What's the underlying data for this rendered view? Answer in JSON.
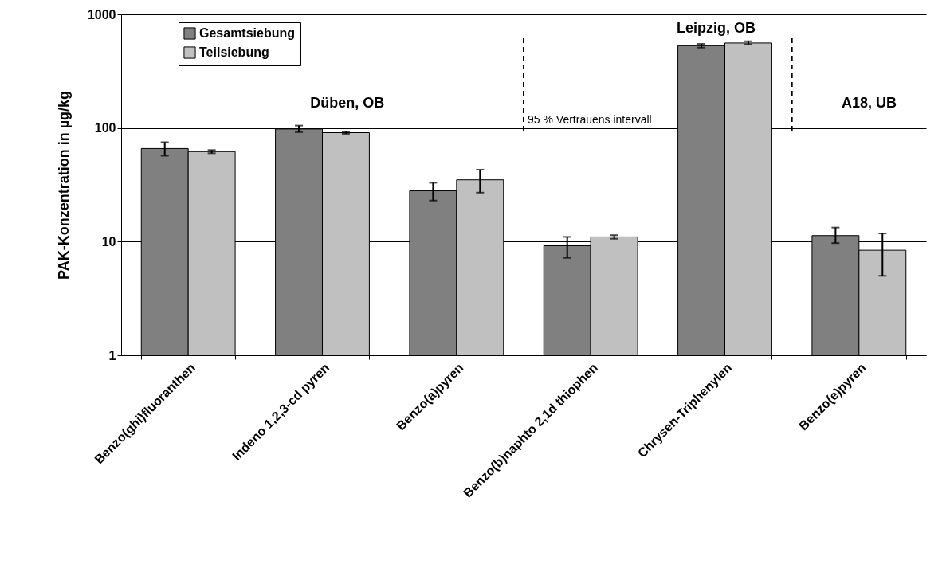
{
  "chart_data": {
    "type": "bar",
    "ylabel": "PAK-Konzentration in µg/kg",
    "categories": [
      "Benzo(ghi)fluoranthen",
      "Indeno 1,2,3-cd pyren",
      "Benzo(a)pyren",
      "Benzo(b)naphto 2,1d thiophen",
      "Chrysen-Triphenylen",
      "Benzo(e)pyren"
    ],
    "series": [
      {
        "name": "Gesamtsiebung",
        "color": "#808080",
        "values": [
          66,
          98,
          28,
          9.2,
          530,
          11.3
        ],
        "errors": [
          [
            57,
            75
          ],
          [
            92,
            105
          ],
          [
            23,
            33
          ],
          [
            7.2,
            11
          ],
          [
            510,
            550
          ],
          [
            9.7,
            13.3
          ]
        ]
      },
      {
        "name": "Teilsiebung",
        "color": "#c0c0c0",
        "values": [
          62,
          91,
          35,
          11,
          560,
          8.4
        ],
        "errors": [
          [
            60,
            64
          ],
          [
            89,
            93
          ],
          [
            27,
            43
          ],
          [
            10.6,
            11.4
          ],
          [
            545,
            580
          ],
          [
            5,
            11.8
          ]
        ]
      }
    ],
    "log": true,
    "ylim": [
      1,
      1000
    ],
    "yticks": [
      1,
      10,
      100,
      1000
    ],
    "grid": "y",
    "legend": "top left",
    "ref_lines": [
      {
        "axis": "x",
        "value": "Benzo(b)naphto 2,1d thiophen",
        "line_style": "dashed"
      },
      {
        "axis": "x",
        "value": "Benzo(e)pyren",
        "line_style": "dashed"
      }
    ],
    "annotations": [
      "Düben, OB",
      "Leipzig, OB",
      "A18, UB",
      "95 % Vertrauens intervall"
    ]
  }
}
